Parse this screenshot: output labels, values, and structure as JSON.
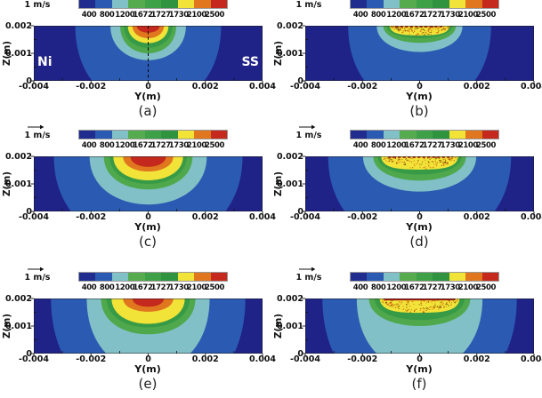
{
  "figure_name": "temperature-contour-panels",
  "chart_data": {
    "type": "heatmap",
    "subtype": "temperature contour cross-sections (Y-Z plane) with melt-pool velocity vectors",
    "vector_scale_label": "1 m/s",
    "colorbar_ticks": [
      "400",
      "800",
      "1200",
      "1672",
      "1727",
      "1730",
      "2100",
      "2500"
    ],
    "colorbar_colors": [
      "#202c8e",
      "#2b5ab2",
      "#80c0c6",
      "#55ab4d",
      "#3fa147",
      "#2f9340",
      "#f2e338",
      "#e0771f",
      "#c5281c"
    ],
    "h_axis": {
      "label": "Y(m)",
      "tick_labels": [
        "-0.004",
        "-0.002",
        "0",
        "0.002",
        "0.004"
      ],
      "range_m": [
        -0.004,
        0.004
      ]
    },
    "v_axis": {
      "label": "Z(m)",
      "tick_labels": [
        "0.002",
        "0.001",
        "0"
      ],
      "range_m": [
        0,
        0.002
      ]
    },
    "palette": {
      "navy": "#1f2287",
      "blue": "#2b5ab2",
      "teal": "#80c0c6",
      "green1": "#4fa84b",
      "green2": "#379a46",
      "yellow": "#f2e338",
      "orange": "#e0771f",
      "red": "#c5281c",
      "streak": "#a81c12",
      "vector": "#3a3000"
    },
    "panels": [
      {
        "label": "(a)",
        "material_left": "Ni",
        "material_right": "SS",
        "dashed_centerline": true,
        "bands": [
          {
            "color": "blue",
            "hw_m": 0.00255,
            "depth_m": 0.003
          },
          {
            "color": "teal",
            "hw_m": 0.00132,
            "depth_m": 0.00125
          },
          {
            "color": "green1",
            "hw_m": 0.00098,
            "depth_m": 0.001
          },
          {
            "color": "green2",
            "hw_m": 0.00085,
            "depth_m": 0.0008
          },
          {
            "color": "yellow",
            "hw_m": 0.00071,
            "depth_m": 0.00063
          },
          {
            "color": "orange",
            "hw_m": 0.00055,
            "depth_m": 0.00045
          },
          {
            "color": "red",
            "hw_m": 0.0004,
            "depth_m": 0.00025
          }
        ]
      },
      {
        "label": "(b)",
        "bands": [
          {
            "color": "blue",
            "hw_m": 0.0025,
            "depth_m": 0.003
          },
          {
            "color": "teal",
            "hw_m": 0.0015,
            "depth_m": 0.00095
          },
          {
            "color": "green1",
            "hw_m": 0.00127,
            "depth_m": 0.00062
          },
          {
            "color": "green2",
            "hw_m": 0.00115,
            "depth_m": 0.00045
          },
          {
            "color": "yellow",
            "hw_m": 0.00105,
            "depth_m": 0.00035,
            "flat": true,
            "speckle": true
          },
          {
            "color": "red",
            "hw_m": 0.00085,
            "depth_m": 5e-05,
            "streak": "dashed"
          }
        ]
      },
      {
        "label": "(c)",
        "bands": [
          {
            "color": "blue",
            "hw_m": 0.0033,
            "depth_m": 0.0033
          },
          {
            "color": "teal",
            "hw_m": 0.00205,
            "depth_m": 0.00175
          },
          {
            "color": "green1",
            "hw_m": 0.00155,
            "depth_m": 0.0012
          },
          {
            "color": "green2",
            "hw_m": 0.00135,
            "depth_m": 0.001
          },
          {
            "color": "yellow",
            "hw_m": 0.00122,
            "depth_m": 0.00087
          },
          {
            "color": "orange",
            "hw_m": 0.00088,
            "depth_m": 0.00055
          },
          {
            "color": "red",
            "hw_m": 0.00062,
            "depth_m": 0.00038
          }
        ]
      },
      {
        "label": "(d)",
        "bands": [
          {
            "color": "blue",
            "hw_m": 0.0032,
            "depth_m": 0.0033
          },
          {
            "color": "teal",
            "hw_m": 0.00198,
            "depth_m": 0.00128
          },
          {
            "color": "green1",
            "hw_m": 0.00162,
            "depth_m": 0.00088
          },
          {
            "color": "green2",
            "hw_m": 0.00147,
            "depth_m": 0.00066
          },
          {
            "color": "yellow",
            "hw_m": 0.00135,
            "depth_m": 0.00048,
            "flat": true,
            "speckle": true
          },
          {
            "color": "red",
            "hw_m": 0.0011,
            "depth_m": 5e-05,
            "streak": "dashed"
          }
        ]
      },
      {
        "label": "(e)",
        "bands": [
          {
            "color": "blue",
            "hw_m": 0.0034,
            "depth_m": 0.004
          },
          {
            "color": "teal",
            "hw_m": 0.00215,
            "depth_m": 0.00265
          },
          {
            "color": "green1",
            "hw_m": 0.00165,
            "depth_m": 0.0013
          },
          {
            "color": "green2",
            "hw_m": 0.00145,
            "depth_m": 0.00105
          },
          {
            "color": "yellow",
            "hw_m": 0.00128,
            "depth_m": 0.00092
          },
          {
            "color": "orange",
            "hw_m": 0.00088,
            "depth_m": 0.00048
          },
          {
            "color": "red",
            "hw_m": 0.00055,
            "depth_m": 0.0003
          }
        ]
      },
      {
        "label": "(f)",
        "bands": [
          {
            "color": "blue",
            "hw_m": 0.0034,
            "depth_m": 0.004
          },
          {
            "color": "teal",
            "hw_m": 0.0022,
            "depth_m": 0.00265
          },
          {
            "color": "green1",
            "hw_m": 0.00177,
            "depth_m": 0.001
          },
          {
            "color": "green2",
            "hw_m": 0.00157,
            "depth_m": 0.00078
          },
          {
            "color": "yellow",
            "hw_m": 0.0014,
            "depth_m": 0.00052,
            "flat": true,
            "speckle": true
          },
          {
            "color": "red",
            "hw_m": 0.00125,
            "depth_m": 7e-05,
            "streak": "solid"
          }
        ]
      }
    ]
  }
}
